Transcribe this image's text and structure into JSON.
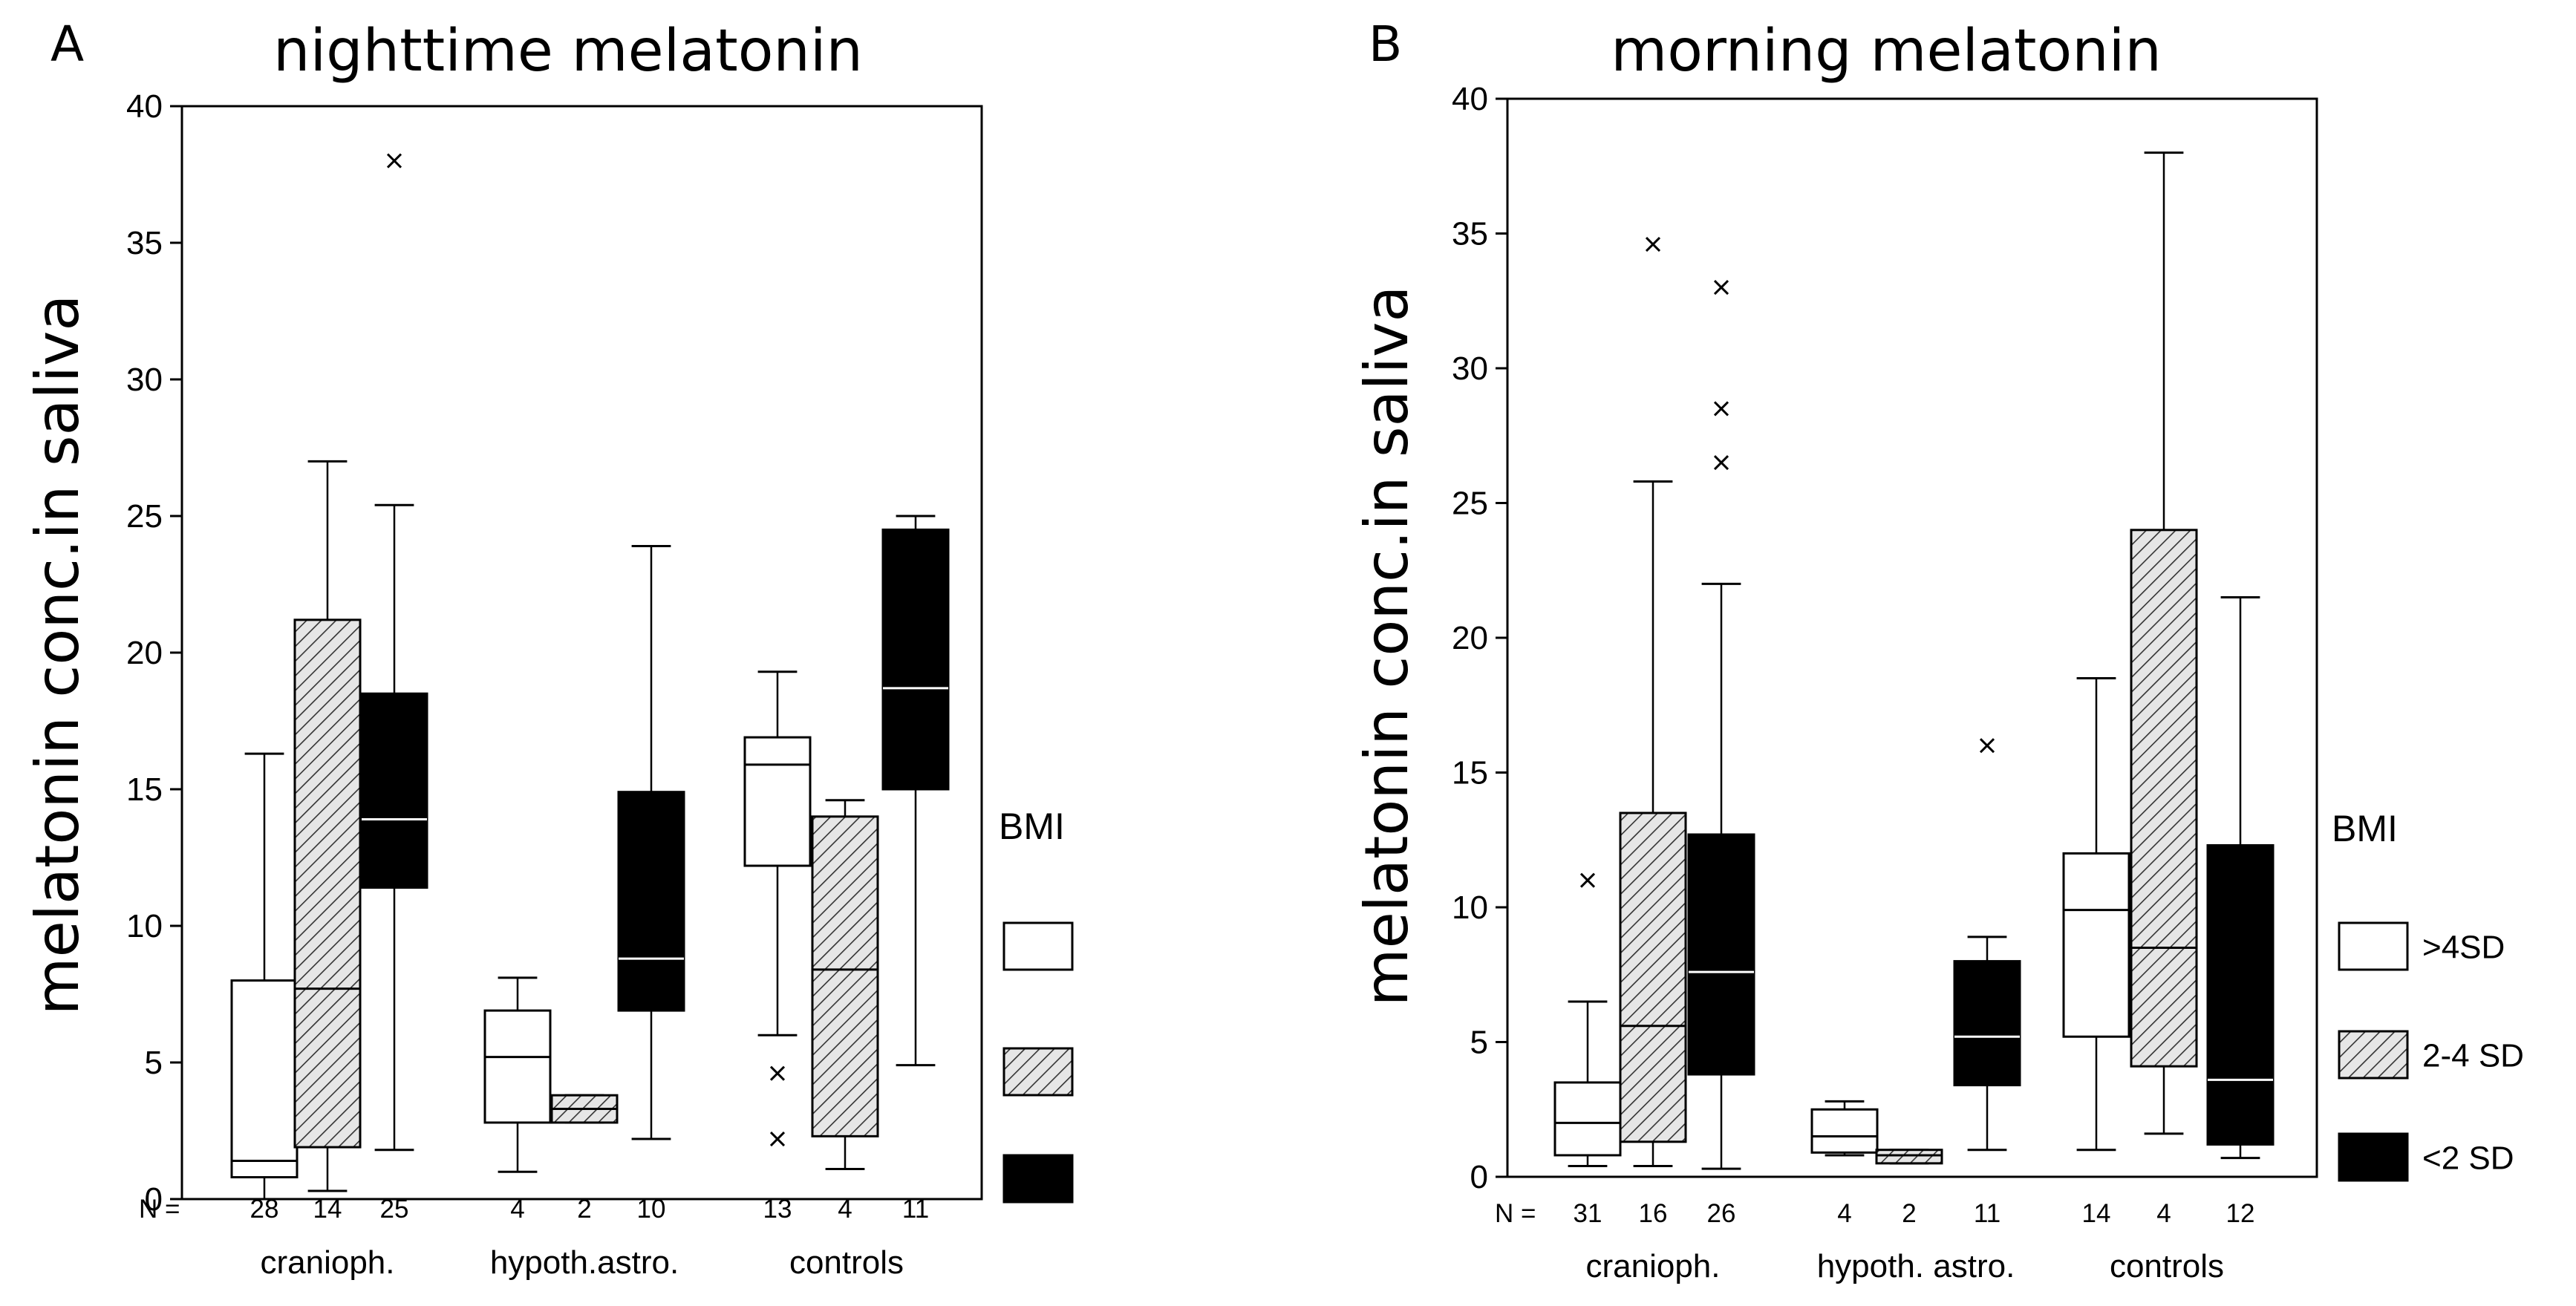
{
  "chart_data": [
    {
      "type": "box",
      "panel_label": "A",
      "title": "nighttime melatonin",
      "ylabel": "melatonin conc.in saliva",
      "ylim": [
        0,
        40
      ],
      "yticks": [
        0,
        5,
        10,
        15,
        20,
        25,
        30,
        35,
        40
      ],
      "n_prefix": "N =",
      "legend": {
        "title": "BMI",
        "position": "right",
        "items": [
          {
            "fill": "white",
            "label": ""
          },
          {
            "fill": "hatched",
            "label": ""
          },
          {
            "fill": "black",
            "label": ""
          }
        ]
      },
      "groups": [
        {
          "name": "cranioph.",
          "boxes": [
            {
              "fill": "white",
              "n": "28",
              "whisker_low": 0,
              "q1": 0.8,
              "median": 1.4,
              "q3": 8.0,
              "whisker_high": 16.3,
              "outliers": []
            },
            {
              "fill": "hatched",
              "n": "14",
              "whisker_low": 0.3,
              "q1": 1.9,
              "median": 7.7,
              "q3": 21.2,
              "whisker_high": 27.0,
              "outliers": []
            },
            {
              "fill": "black",
              "n": "25",
              "whisker_low": 1.8,
              "q1": 11.4,
              "median": 13.9,
              "q3": 18.5,
              "whisker_high": 25.4,
              "outliers": [
                38.0
              ]
            }
          ]
        },
        {
          "name": "hypoth.astro.",
          "boxes": [
            {
              "fill": "white",
              "n": "4",
              "whisker_low": 1.0,
              "q1": 2.8,
              "median": 5.2,
              "q3": 6.9,
              "whisker_high": 8.1,
              "outliers": []
            },
            {
              "fill": "hatched",
              "n": "2",
              "whisker_low": 2.8,
              "q1": 2.8,
              "median": 3.3,
              "q3": 3.8,
              "whisker_high": 3.8,
              "outliers": []
            },
            {
              "fill": "black",
              "n": "10",
              "whisker_low": 2.2,
              "q1": 6.9,
              "median": 8.8,
              "q3": 14.9,
              "whisker_high": 23.9,
              "outliers": []
            }
          ]
        },
        {
          "name": "controls",
          "boxes": [
            {
              "fill": "white",
              "n": "13",
              "whisker_low": 6.0,
              "q1": 12.2,
              "median": 15.9,
              "q3": 16.9,
              "whisker_high": 19.3,
              "outliers": [
                4.6,
                2.2
              ]
            },
            {
              "fill": "hatched",
              "n": "4",
              "whisker_low": 1.1,
              "q1": 2.3,
              "median": 8.4,
              "q3": 14.0,
              "whisker_high": 14.6,
              "outliers": []
            },
            {
              "fill": "black",
              "n": "11",
              "whisker_low": 4.9,
              "q1": 15.0,
              "median": 18.7,
              "q3": 24.5,
              "whisker_high": 25.0,
              "outliers": []
            }
          ]
        }
      ]
    },
    {
      "type": "box",
      "panel_label": "B",
      "title": "morning melatonin",
      "ylabel": "melatonin conc.in saliva",
      "ylim": [
        0,
        40
      ],
      "yticks": [
        0,
        5,
        10,
        15,
        20,
        25,
        30,
        35,
        40
      ],
      "n_prefix": "N =",
      "legend": {
        "title": "BMI",
        "position": "right",
        "items": [
          {
            "fill": "white",
            "label": ">4SD"
          },
          {
            "fill": "hatched",
            "label": "2-4 SD"
          },
          {
            "fill": "black",
            "label": "<2 SD"
          }
        ]
      },
      "groups": [
        {
          "name": "cranioph.",
          "boxes": [
            {
              "fill": "white",
              "n": "31",
              "whisker_low": 0.4,
              "q1": 0.8,
              "median": 2.0,
              "q3": 3.5,
              "whisker_high": 6.5,
              "outliers": [
                11.0
              ]
            },
            {
              "fill": "hatched",
              "n": "16",
              "whisker_low": 0.4,
              "q1": 1.3,
              "median": 5.6,
              "q3": 13.5,
              "whisker_high": 25.8,
              "outliers": [
                34.6
              ]
            },
            {
              "fill": "black",
              "n": "26",
              "whisker_low": 0.3,
              "q1": 3.8,
              "median": 7.6,
              "q3": 12.7,
              "whisker_high": 22.0,
              "outliers": [
                33.0,
                28.5,
                26.5
              ]
            }
          ]
        },
        {
          "name": "hypoth. astro.",
          "boxes": [
            {
              "fill": "white",
              "n": "4",
              "whisker_low": 0.8,
              "q1": 0.9,
              "median": 1.5,
              "q3": 2.5,
              "whisker_high": 2.8,
              "outliers": []
            },
            {
              "fill": "hatched",
              "n": "2",
              "whisker_low": 0.5,
              "q1": 0.5,
              "median": 0.8,
              "q3": 1.0,
              "whisker_high": 1.0,
              "outliers": []
            },
            {
              "fill": "black",
              "n": "11",
              "whisker_low": 1.0,
              "q1": 3.4,
              "median": 5.2,
              "q3": 8.0,
              "whisker_high": 8.9,
              "outliers": [
                16.0
              ]
            }
          ]
        },
        {
          "name": "controls",
          "boxes": [
            {
              "fill": "white",
              "n": "14",
              "whisker_low": 1.0,
              "q1": 5.2,
              "median": 9.9,
              "q3": 12.0,
              "whisker_high": 18.5,
              "outliers": []
            },
            {
              "fill": "hatched",
              "n": "4",
              "whisker_low": 1.6,
              "q1": 4.1,
              "median": 8.5,
              "q3": 24.0,
              "whisker_high": 38.0,
              "outliers": []
            },
            {
              "fill": "black",
              "n": "12",
              "whisker_low": 0.7,
              "q1": 1.2,
              "median": 3.6,
              "q3": 12.3,
              "whisker_high": 21.5,
              "outliers": []
            }
          ]
        }
      ]
    }
  ]
}
